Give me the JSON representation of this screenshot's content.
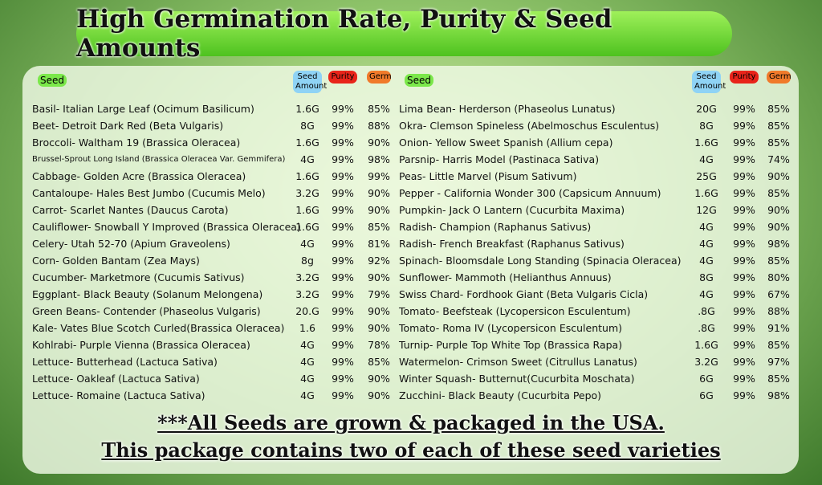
{
  "title": "High Germination Rate, Purity & Seed Amounts",
  "header": [
    "Seed",
    "Seed Amount",
    "Purity",
    "Germ"
  ],
  "left": [
    [
      "Basil- Italian Large Leaf (Ocimum Basilicum)",
      "1.6G",
      "99%",
      "85%"
    ],
    [
      "Beet- Detroit Dark Red (Beta Vulgaris)",
      "8G",
      "99%",
      "88%"
    ],
    [
      "Broccoli- Waltham 19 (Brassica Oleracea)",
      "1.6G",
      "99%",
      "90%"
    ],
    [
      "Brussel-Sprout Long Island (Brassica Oleracea Var. Gemmifera)",
      "4G",
      "99%",
      "98%"
    ],
    [
      "Cabbage- Golden Acre (Brassica Oleracea)",
      "1.6G",
      "99%",
      "99%"
    ],
    [
      "Cantaloupe- Hales Best Jumbo (Cucumis Melo)",
      "3.2G",
      "99%",
      "90%"
    ],
    [
      "Carrot- Scarlet Nantes (Daucus Carota)",
      "1.6G",
      "99%",
      "90%"
    ],
    [
      "Cauliflower- Snowball Y Improved (Brassica Oleracea)",
      "1.6G",
      "99%",
      "85%"
    ],
    [
      "Celery- Utah 52-70 (Apium Graveolens)",
      "4G",
      "99%",
      "81%"
    ],
    [
      "Corn- Golden Bantam (Zea Mays)",
      "8g",
      "99%",
      "92%"
    ],
    [
      "Cucumber- Marketmore (Cucumis Sativus)",
      "3.2G",
      "99%",
      "90%"
    ],
    [
      "Eggplant- Black Beauty (Solanum Melongena)",
      "3.2G",
      "99%",
      "79%"
    ],
    [
      "Green Beans- Contender (Phaseolus Vulgaris)",
      "20.G",
      "99%",
      "90%"
    ],
    [
      "Kale- Vates Blue Scotch Curled(Brassica Oleracea)",
      "1.6",
      "99%",
      "90%"
    ],
    [
      "Kohlrabi- Purple Vienna (Brassica Oleracea)",
      "4G",
      "99%",
      "78%"
    ],
    [
      "Lettuce- Butterhead (Lactuca Sativa)",
      "4G",
      "99%",
      "85%"
    ],
    [
      "Lettuce- Oakleaf (Lactuca Sativa)",
      "4G",
      "99%",
      "90%"
    ],
    [
      "Lettuce- Romaine (Lactuca Sativa)",
      "4G",
      "99%",
      "90%"
    ]
  ],
  "right": [
    [
      "Lima Bean- Herderson (Phaseolus Lunatus)",
      "20G",
      "99%",
      "85%"
    ],
    [
      "Okra- Clemson Spineless (Abelmoschus Esculentus)",
      "8G",
      "99%",
      "85%"
    ],
    [
      "Onion- Yellow Sweet Spanish (Allium cepa)",
      "1.6G",
      "99%",
      "85%"
    ],
    [
      "Parsnip- Harris Model (Pastinaca Sativa)",
      "4G",
      "99%",
      "74%"
    ],
    [
      "Peas- Little Marvel (Pisum Sativum)",
      "25G",
      "99%",
      "90%"
    ],
    [
      "Pepper - California Wonder 300 (Capsicum Annuum)",
      "1.6G",
      "99%",
      "85%"
    ],
    [
      "Pumpkin- Jack O Lantern (Cucurbita Maxima)",
      "12G",
      "99%",
      "90%"
    ],
    [
      "Radish- Champion (Raphanus Sativus)",
      "4G",
      "99%",
      "90%"
    ],
    [
      "Radish- French Breakfast (Raphanus Sativus)",
      "4G",
      "99%",
      "98%"
    ],
    [
      "Spinach- Bloomsdale Long Standing (Spinacia Oleracea)",
      "4G",
      "99%",
      "85%"
    ],
    [
      "Sunflower- Mammoth (Helianthus Annuus)",
      "8G",
      "99%",
      "80%"
    ],
    [
      "Swiss Chard- Fordhook Giant (Beta Vulgaris Cicla)",
      "4G",
      "99%",
      "67%"
    ],
    [
      "Tomato- Beefsteak (Lycopersicon Esculentum)",
      ".8G",
      "99%",
      "88%"
    ],
    [
      "Tomato- Roma IV (Lycopersicon Esculentum)",
      ".8G",
      "99%",
      "91%"
    ],
    [
      "Turnip- Purple Top White Top (Brassica Rapa)",
      "1.6G",
      "99%",
      "85%"
    ],
    [
      "Watermelon- Crimson Sweet (Citrullus Lanatus)",
      "3.2G",
      "99%",
      "97%"
    ],
    [
      "Winter Squash- Butternut(Cucurbita Moschata)",
      "6G",
      "99%",
      "85%"
    ],
    [
      "Zucchini- Black Beauty (Cucurbita Pepo)",
      "6G",
      "99%",
      "98%"
    ]
  ],
  "footer": [
    "***All Seeds are grown & packaged in the USA.",
    "This package contains two of each of these seed varieties"
  ]
}
